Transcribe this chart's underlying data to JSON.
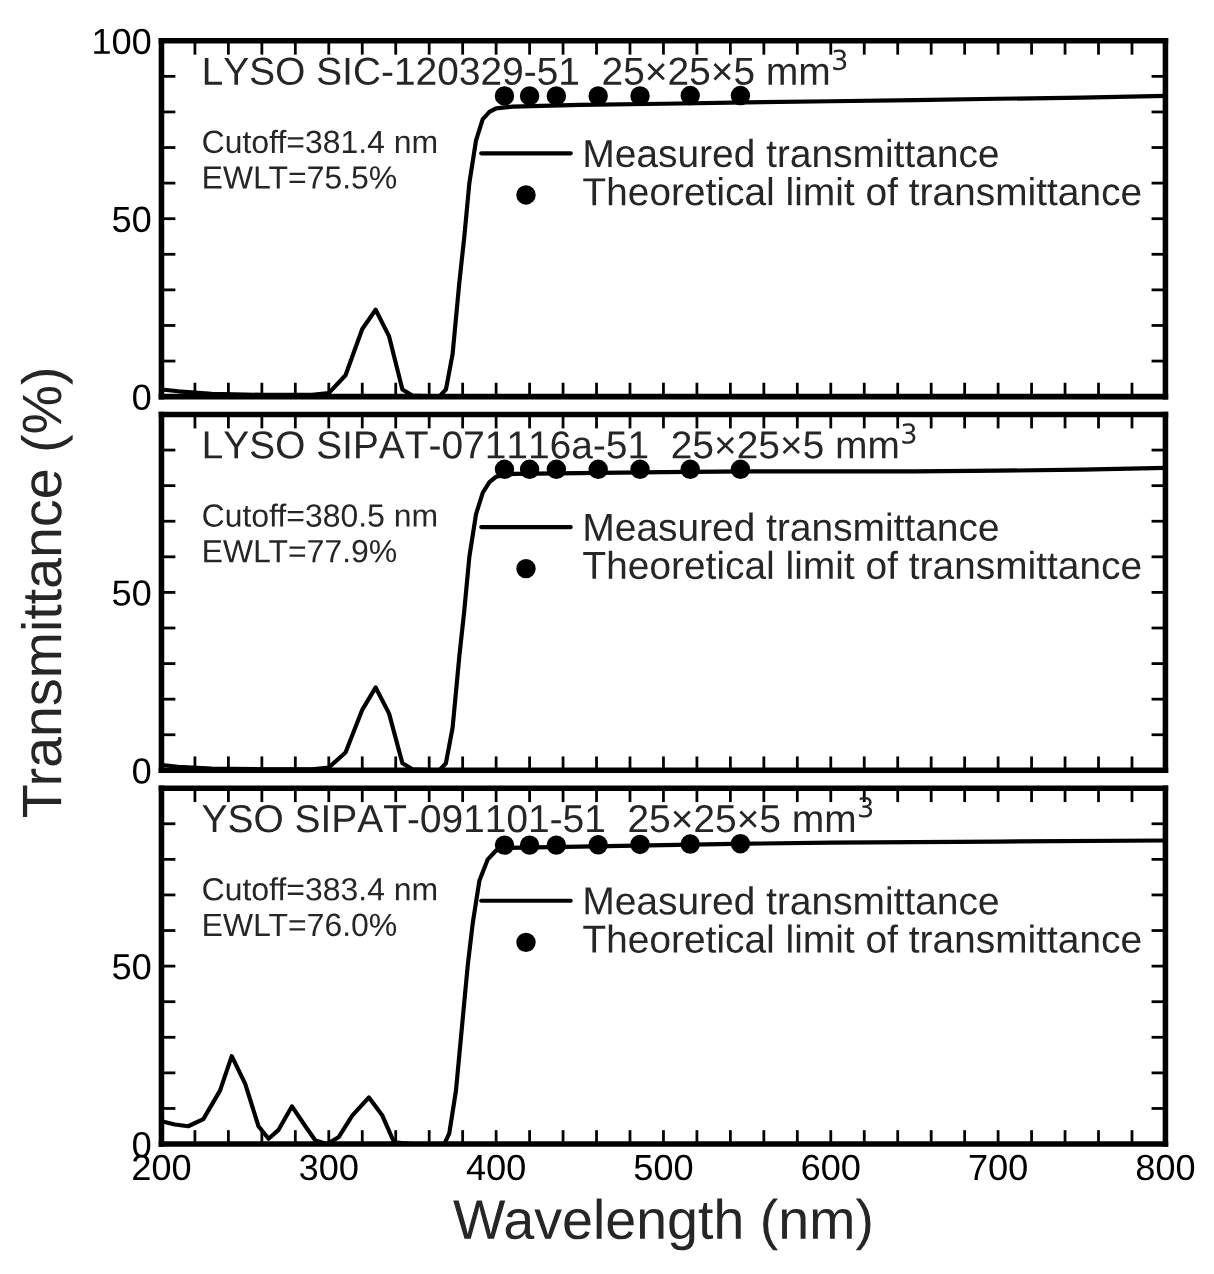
{
  "chart_data": [
    {
      "type": "line",
      "title": "LYSO SIC-120329-51  25×25×5 mm$^{3}$",
      "annotations": [
        "Cutoff=381.4 nm",
        "EWLT=75.5%"
      ],
      "xlim": [
        200,
        800
      ],
      "xticks": [
        200,
        {
          "value": 220,
          "label": null
        },
        {
          "value": 240,
          "label": null
        },
        {
          "value": 260,
          "label": null
        },
        {
          "value": 280,
          "label": null
        },
        300,
        {
          "value": 320,
          "label": null
        },
        {
          "value": 340,
          "label": null
        },
        {
          "value": 360,
          "label": null
        },
        {
          "value": 380,
          "label": null
        },
        400,
        {
          "value": 420,
          "label": null
        },
        {
          "value": 440,
          "label": null
        },
        {
          "value": 460,
          "label": null
        },
        {
          "value": 480,
          "label": null
        },
        500,
        {
          "value": 520,
          "label": null
        },
        {
          "value": 540,
          "label": null
        },
        {
          "value": 560,
          "label": null
        },
        {
          "value": 580,
          "label": null
        },
        600,
        {
          "value": 620,
          "label": null
        },
        {
          "value": 640,
          "label": null
        },
        {
          "value": 660,
          "label": null
        },
        {
          "value": 680,
          "label": null
        },
        700,
        {
          "value": 720,
          "label": null
        },
        {
          "value": 740,
          "label": null
        },
        {
          "value": 760,
          "label": null
        },
        {
          "value": 780,
          "label": null
        },
        800
      ],
      "ylim": [
        0,
        100
      ],
      "yticks": [
        0,
        {
          "value": 10,
          "label": null
        },
        {
          "value": 20,
          "label": null
        },
        {
          "value": 30,
          "label": null
        },
        {
          "value": 40,
          "label": null
        },
        50,
        {
          "value": 60,
          "label": null
        },
        {
          "value": 70,
          "label": null
        },
        {
          "value": 80,
          "label": null
        },
        {
          "value": 90,
          "label": null
        },
        100
      ],
      "tick_labels": "y",
      "grid": false,
      "legend": "right",
      "series": [
        {
          "name": "Measured transmittance",
          "type": "line",
          "color": "#000000",
          "line_style": "solid",
          "x": [
            200,
            210,
            230,
            260,
            290,
            300,
            310,
            320,
            328,
            336,
            344,
            350,
            366,
            370,
            374,
            378,
            381,
            384,
            388,
            392,
            396,
            400,
            410,
            450,
            500,
            550,
            600,
            650,
            700,
            750,
            800
          ],
          "values": [
            2,
            1.5,
            0.8,
            0.5,
            0.5,
            1,
            6,
            19,
            24.4,
            17,
            2,
            0.3,
            0,
            2,
            12,
            32,
            45,
            60,
            72,
            78,
            80,
            81,
            81.5,
            82,
            82.3,
            82.7,
            83,
            83.3,
            83.7,
            84,
            84.5
          ]
        },
        {
          "name": "Theoretical limit of transmittance",
          "type": "scatter",
          "color": "#000000",
          "marker": "circle",
          "x": [
            405,
            420,
            436,
            461,
            486,
            516,
            546
          ],
          "values": [
            84.5,
            84.5,
            84.5,
            84.5,
            84.5,
            84.6,
            84.6
          ]
        }
      ]
    },
    {
      "type": "line",
      "title": "LYSO SIPAT-071116a-51  25×25×5 mm$^{3}$",
      "annotations": [
        "Cutoff=380.5 nm",
        "EWLT=77.9%"
      ],
      "ylabel": "Transmittance (%)",
      "xlim": [
        200,
        800
      ],
      "xticks": [
        200,
        {
          "value": 220,
          "label": null
        },
        {
          "value": 240,
          "label": null
        },
        {
          "value": 260,
          "label": null
        },
        {
          "value": 280,
          "label": null
        },
        300,
        {
          "value": 320,
          "label": null
        },
        {
          "value": 340,
          "label": null
        },
        {
          "value": 360,
          "label": null
        },
        {
          "value": 380,
          "label": null
        },
        400,
        {
          "value": 420,
          "label": null
        },
        {
          "value": 440,
          "label": null
        },
        {
          "value": 460,
          "label": null
        },
        {
          "value": 480,
          "label": null
        },
        500,
        {
          "value": 520,
          "label": null
        },
        {
          "value": 540,
          "label": null
        },
        {
          "value": 560,
          "label": null
        },
        {
          "value": 580,
          "label": null
        },
        600,
        {
          "value": 620,
          "label": null
        },
        {
          "value": 640,
          "label": null
        },
        {
          "value": 660,
          "label": null
        },
        {
          "value": 680,
          "label": null
        },
        700,
        {
          "value": 720,
          "label": null
        },
        {
          "value": 740,
          "label": null
        },
        {
          "value": 760,
          "label": null
        },
        {
          "value": 780,
          "label": null
        },
        800
      ],
      "ylim": [
        0,
        100
      ],
      "yticks": [
        0,
        {
          "value": 10,
          "label": null
        },
        {
          "value": 20,
          "label": null
        },
        {
          "value": 30,
          "label": null
        },
        {
          "value": 40,
          "label": null
        },
        50,
        {
          "value": 60,
          "label": null
        },
        {
          "value": 70,
          "label": null
        },
        {
          "value": 80,
          "label": null
        },
        {
          "value": 90,
          "label": null
        },
        {
          "value": 100,
          "label": null
        }
      ],
      "tick_labels": "y",
      "grid": false,
      "legend": "right",
      "series": [
        {
          "name": "Measured transmittance",
          "type": "line",
          "color": "#000000",
          "line_style": "solid",
          "x": [
            200,
            210,
            230,
            260,
            290,
            300,
            310,
            320,
            328,
            336,
            344,
            350,
            366,
            370,
            374,
            378,
            381,
            384,
            388,
            392,
            396,
            400,
            410,
            450,
            500,
            550,
            600,
            650,
            700,
            750,
            800
          ],
          "values": [
            1.5,
            1,
            0.5,
            0.3,
            0.3,
            0.8,
            5,
            17,
            23.3,
            16,
            2,
            0.3,
            0,
            2,
            12,
            32,
            45,
            60,
            72,
            78,
            81,
            82.5,
            83.3,
            83.5,
            83.8,
            84,
            84,
            84,
            84.2,
            84.5,
            85
          ]
        },
        {
          "name": "Theoretical limit of transmittance",
          "type": "scatter",
          "color": "#000000",
          "marker": "circle",
          "x": [
            405,
            420,
            436,
            461,
            486,
            516,
            546
          ],
          "values": [
            84.6,
            84.6,
            84.6,
            84.6,
            84.6,
            84.6,
            84.6
          ]
        }
      ]
    },
    {
      "type": "line",
      "title": "YSO SIPAT-091101-51  25×25×5 mm$^{3}$",
      "annotations": [
        "Cutoff=383.4 nm",
        "EWLT=76.0%"
      ],
      "xlabel": "Wavelength (nm)",
      "xlim": [
        200,
        800
      ],
      "xticks": [
        200,
        {
          "value": 220,
          "label": null
        },
        {
          "value": 240,
          "label": null
        },
        {
          "value": 260,
          "label": null
        },
        {
          "value": 280,
          "label": null
        },
        300,
        {
          "value": 320,
          "label": null
        },
        {
          "value": 340,
          "label": null
        },
        {
          "value": 360,
          "label": null
        },
        {
          "value": 380,
          "label": null
        },
        400,
        {
          "value": 420,
          "label": null
        },
        {
          "value": 440,
          "label": null
        },
        {
          "value": 460,
          "label": null
        },
        {
          "value": 480,
          "label": null
        },
        500,
        {
          "value": 520,
          "label": null
        },
        {
          "value": 540,
          "label": null
        },
        {
          "value": 560,
          "label": null
        },
        {
          "value": 580,
          "label": null
        },
        600,
        {
          "value": 620,
          "label": null
        },
        {
          "value": 640,
          "label": null
        },
        {
          "value": 660,
          "label": null
        },
        {
          "value": 680,
          "label": null
        },
        700,
        {
          "value": 720,
          "label": null
        },
        {
          "value": 740,
          "label": null
        },
        {
          "value": 760,
          "label": null
        },
        {
          "value": 780,
          "label": null
        },
        800
      ],
      "ylim": [
        0,
        100
      ],
      "yticks": [
        0,
        {
          "value": 10,
          "label": null
        },
        {
          "value": 20,
          "label": null
        },
        {
          "value": 30,
          "label": null
        },
        {
          "value": 40,
          "label": null
        },
        50,
        {
          "value": 60,
          "label": null
        },
        {
          "value": 70,
          "label": null
        },
        {
          "value": 80,
          "label": null
        },
        {
          "value": 90,
          "label": null
        },
        {
          "value": 100,
          "label": null
        }
      ],
      "grid": false,
      "legend": "right",
      "series": [
        {
          "name": "Measured transmittance",
          "type": "line",
          "color": "#000000",
          "line_style": "solid",
          "x": [
            200,
            208,
            216,
            225,
            235,
            242,
            250,
            258,
            264,
            270,
            278,
            286,
            292,
            299,
            306,
            314,
            324,
            332,
            339,
            350,
            369,
            372,
            376,
            380,
            383,
            386,
            390,
            395,
            400,
            405,
            450,
            500,
            550,
            600,
            700,
            800
          ],
          "values": [
            6.4,
            5.5,
            5,
            7,
            15,
            24.7,
            17,
            5,
            1.5,
            4,
            10.6,
            5,
            1,
            0,
            2,
            8,
            13.1,
            8,
            0.5,
            0,
            0,
            3,
            15,
            35,
            50,
            62,
            74,
            80,
            82.5,
            83.2,
            83.6,
            84,
            84.4,
            84.7,
            85,
            85.3
          ]
        },
        {
          "name": "Theoretical limit of transmittance",
          "type": "scatter",
          "color": "#000000",
          "marker": "circle",
          "x": [
            405,
            420,
            436,
            461,
            486,
            516,
            546
          ],
          "values": [
            84.0,
            84.0,
            84.0,
            84.1,
            84.2,
            84.3,
            84.4
          ]
        }
      ]
    }
  ]
}
